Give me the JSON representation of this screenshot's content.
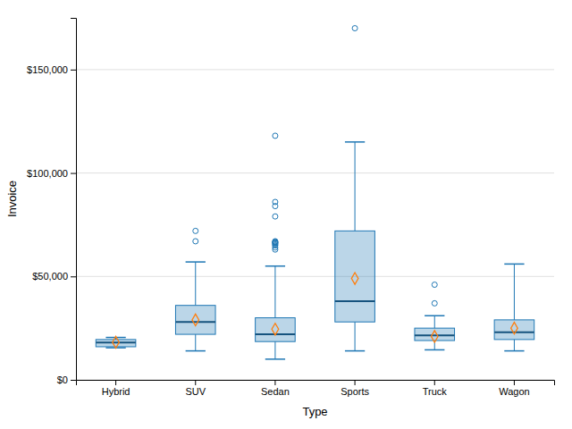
{
  "chart_data": {
    "type": "box",
    "xlabel": "Type",
    "ylabel": "Invoice",
    "categories": [
      "Hybrid",
      "SUV",
      "Sedan",
      "Sports",
      "Truck",
      "Wagon"
    ],
    "boxes": [
      {
        "q1": 16000,
        "median": 18000,
        "q3": 19500,
        "mean": 18200,
        "whislo": 15500,
        "whishi": 20500,
        "fliers": []
      },
      {
        "q1": 22000,
        "median": 28000,
        "q3": 36000,
        "mean": 29000,
        "whislo": 14000,
        "whishi": 57000,
        "fliers": [
          67000,
          72000
        ]
      },
      {
        "q1": 18500,
        "median": 22000,
        "q3": 30000,
        "mean": 24500,
        "whislo": 10000,
        "whishi": 55000,
        "fliers": [
          63000,
          64000,
          65000,
          65500,
          66000,
          66200,
          66500,
          66700,
          67000,
          79000,
          84000,
          86000,
          118000
        ]
      },
      {
        "q1": 28000,
        "median": 38000,
        "q3": 72000,
        "mean": 49000,
        "whislo": 14000,
        "whishi": 115000,
        "fliers": [
          170000
        ]
      },
      {
        "q1": 19000,
        "median": 21500,
        "q3": 25000,
        "mean": 21000,
        "whislo": 14500,
        "whishi": 31000,
        "fliers": [
          37000,
          46000
        ]
      },
      {
        "q1": 19500,
        "median": 23000,
        "q3": 29000,
        "mean": 25000,
        "whislo": 14000,
        "whishi": 56000,
        "fliers": []
      }
    ],
    "ylim": [
      0,
      175000
    ],
    "yticks": [
      {
        "value": 0,
        "label": "$0"
      },
      {
        "value": 50000,
        "label": "$50,000"
      },
      {
        "value": 100000,
        "label": "$100,000"
      },
      {
        "value": 150000,
        "label": "$150,000"
      }
    ],
    "grid": true
  }
}
